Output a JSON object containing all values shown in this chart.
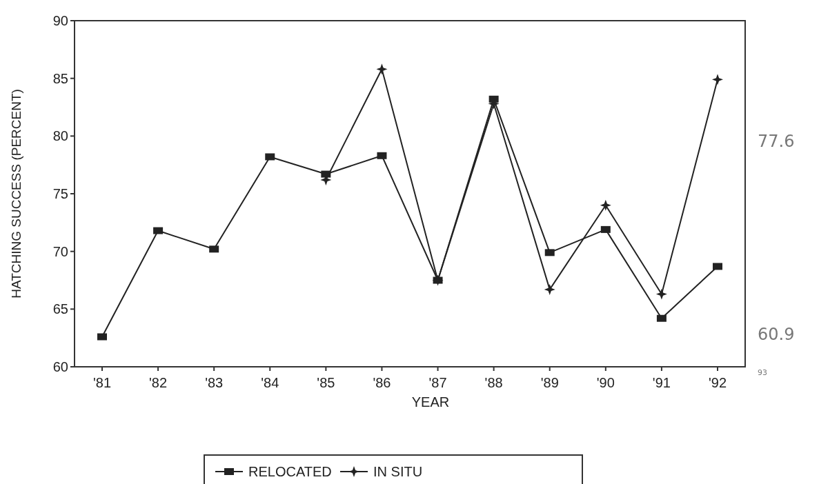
{
  "chart_data": {
    "type": "line",
    "xlabel": "YEAR",
    "ylabel": "HATCHING SUCCESS (PERCENT)",
    "categories": [
      "'81",
      "'82",
      "'83",
      "'84",
      "'85",
      "'86",
      "'87",
      "'88",
      "'89",
      "'90",
      "'91",
      "'92"
    ],
    "series": [
      {
        "name": "RELOCATED",
        "color": "#222222",
        "marker": "square",
        "values": [
          62.6,
          71.8,
          70.2,
          78.2,
          76.7,
          78.3,
          67.5,
          83.2,
          69.9,
          71.9,
          64.2,
          68.7
        ]
      },
      {
        "name": "IN SITU",
        "color": "#222222",
        "marker": "star",
        "values": [
          null,
          null,
          null,
          null,
          76.2,
          85.8,
          67.5,
          82.8,
          66.7,
          74.0,
          66.3,
          84.9
        ]
      }
    ],
    "ylim": [
      60,
      90
    ],
    "yticks": [
      60,
      65,
      70,
      75,
      80,
      85,
      90
    ],
    "grid": false,
    "legend": "bottom",
    "line_style": "solid",
    "annotations": [
      "77.6",
      "60.9",
      "93"
    ]
  }
}
